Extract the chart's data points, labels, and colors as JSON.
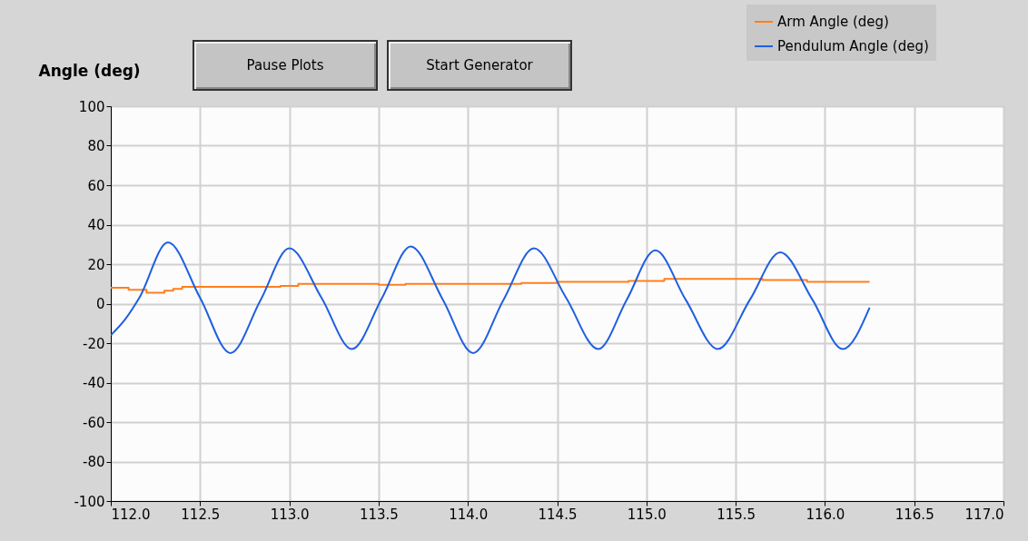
{
  "chart_data": {
    "type": "line",
    "ylabel": "Angle (deg)",
    "annotations": [
      "Pause Plots",
      "Start Generator"
    ],
    "series": [
      {
        "name": "Arm Angle (deg)",
        "color": "#ff7f1e",
        "type": "step",
        "x": [
          112.0,
          112.1,
          112.2,
          112.3,
          112.35,
          112.4,
          112.5,
          112.95,
          113.05,
          113.5,
          113.65,
          114.3,
          114.5,
          114.9,
          115.1,
          115.65,
          115.9,
          116.25
        ],
        "values": [
          8,
          7,
          5.5,
          6.5,
          7.5,
          8.5,
          8.5,
          9,
          10,
          9.5,
          10,
          10.5,
          11,
          11.5,
          12.5,
          12,
          11,
          11
        ]
      },
      {
        "name": "Pendulum Angle (deg)",
        "color": "#1f5fe0",
        "x": [
          112.0,
          112.08,
          112.16,
          112.32,
          112.5,
          112.67,
          112.84,
          113.0,
          113.18,
          113.35,
          113.52,
          113.68,
          113.86,
          114.03,
          114.2,
          114.37,
          114.55,
          114.73,
          114.89,
          115.05,
          115.22,
          115.4,
          115.58,
          115.75,
          115.93,
          116.1,
          116.25
        ],
        "values": [
          -16,
          -8,
          3,
          31,
          3,
          -25,
          2,
          28,
          3,
          -23,
          3,
          29,
          2,
          -25,
          2,
          28,
          3,
          -23,
          2,
          27,
          2,
          -23,
          2,
          26,
          2,
          -23,
          -2
        ]
      }
    ],
    "xlim": [
      112,
      117
    ],
    "xticks": [
      {
        "value": 112,
        "label": "112.0"
      },
      {
        "value": 112.5,
        "label": "112.5"
      },
      {
        "value": 113,
        "label": "113.0"
      },
      {
        "value": 113.5,
        "label": "113.5"
      },
      {
        "value": 114,
        "label": "114.0"
      },
      {
        "value": 114.5,
        "label": "114.5"
      },
      {
        "value": 115,
        "label": "115.0"
      },
      {
        "value": 115.5,
        "label": "115.5"
      },
      {
        "value": 116,
        "label": "116.0"
      },
      {
        "value": 116.5,
        "label": "116.5"
      },
      {
        "value": 117,
        "label": "117.0"
      }
    ],
    "ylim": [
      -100,
      100
    ],
    "yticks": [
      -100,
      -80,
      -60,
      -40,
      -20,
      0,
      20,
      40,
      60,
      80,
      100
    ],
    "grid": true,
    "legend": "top right"
  }
}
